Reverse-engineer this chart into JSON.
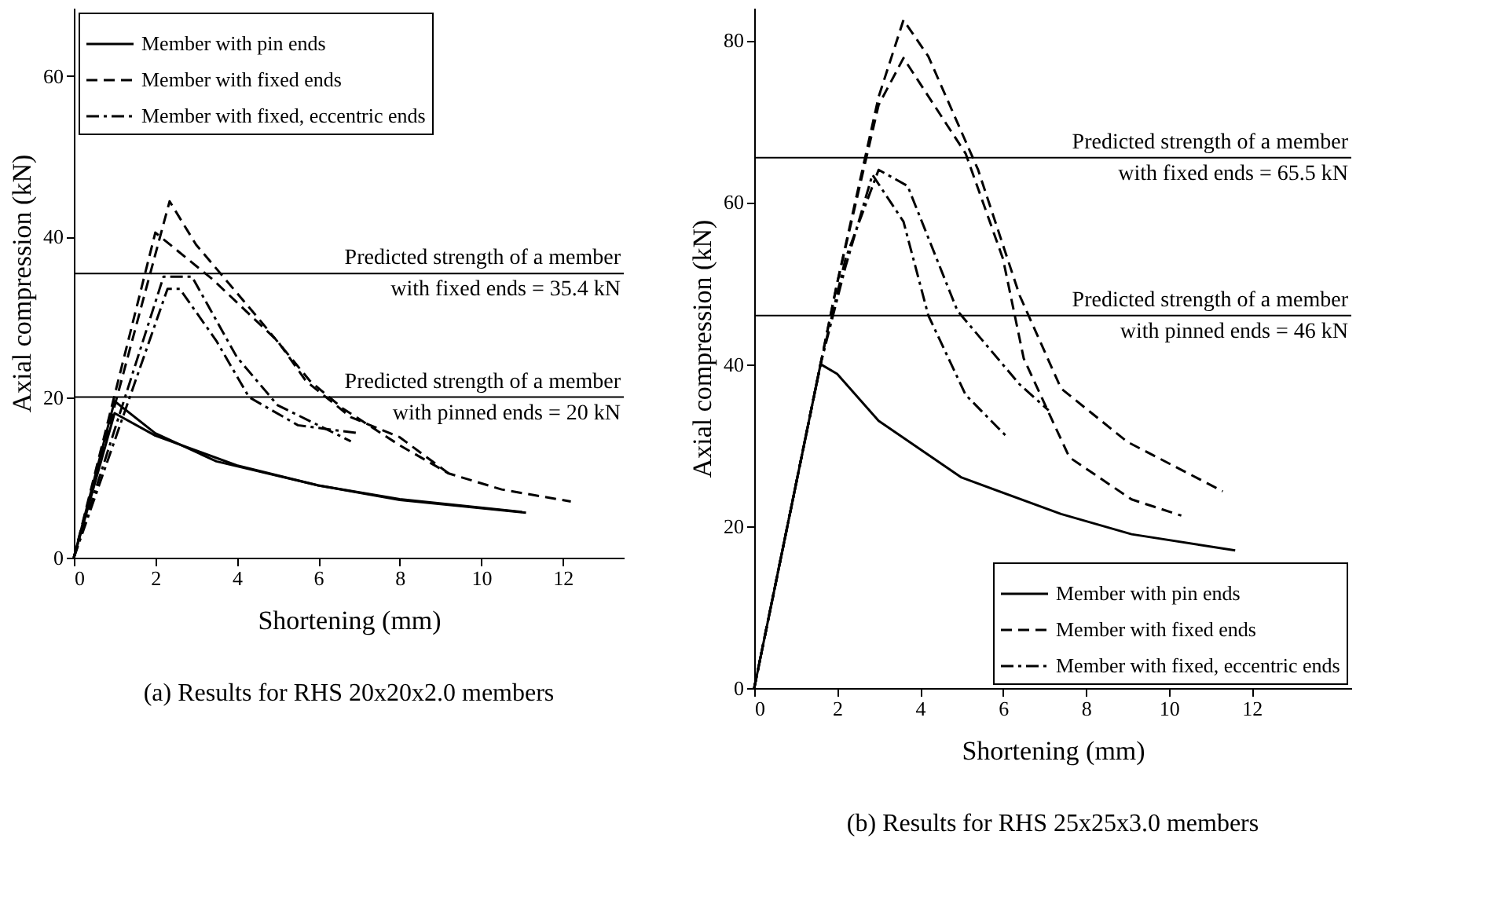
{
  "chart_data": [
    {
      "type": "line",
      "title": "(a) Results for RHS 20x20x2.0 members",
      "xlabel": "Shortening (mm)",
      "ylabel": "Axial compression (kN)",
      "xlim": [
        0,
        13.5
      ],
      "ylim": [
        0,
        68.5
      ],
      "xticks": [
        0,
        2,
        4,
        6,
        8,
        10,
        12
      ],
      "yticks": [
        0,
        20,
        40,
        60
      ],
      "legend": "top left",
      "ref_lines": [
        {
          "axis": "y",
          "value": 35.4,
          "label": "Predicted strength of a member\nwith fixed ends = 35.4 kN"
        },
        {
          "axis": "y",
          "value": 20,
          "label": "Predicted strength of a member\nwith pinned ends = 20 kN"
        }
      ],
      "series": [
        {
          "name": "Member with pin ends",
          "color": "#000000",
          "line_style": "solid",
          "x": [
            0,
            1,
            2,
            3.5,
            6,
            8,
            11
          ],
          "values": [
            0,
            19.5,
            15.5,
            12,
            9,
            7.3,
            5.7
          ]
        },
        {
          "color": "#000000",
          "line_style": "solid",
          "x": [
            0,
            1,
            2,
            4,
            6,
            8,
            11.1
          ],
          "values": [
            0,
            18,
            15.2,
            11.5,
            9,
            7.2,
            5.6
          ]
        },
        {
          "name": "Member with fixed ends",
          "color": "#000000",
          "line_style": "dashed",
          "x": [
            0,
            2.35,
            3,
            4.5,
            5.8,
            6.6,
            8,
            9.2,
            10.5,
            12.2
          ],
          "values": [
            0,
            44.4,
            39,
            30,
            22,
            18.6,
            14,
            10.5,
            8.5,
            7
          ]
        },
        {
          "color": "#000000",
          "line_style": "dashed",
          "x": [
            0,
            2,
            3.4,
            5,
            5.7,
            6.8,
            8,
            9.2
          ],
          "values": [
            0,
            40.5,
            34.7,
            27,
            22,
            17.5,
            15,
            10.5
          ]
        },
        {
          "name": "Member with fixed, eccentric ends",
          "color": "#000000",
          "line_style": "dashdot",
          "x": [
            0,
            2.2,
            2.9,
            4,
            5,
            6.8
          ],
          "values": [
            0,
            35,
            35,
            25,
            19,
            14.5
          ]
        },
        {
          "color": "#000000",
          "line_style": "dashdot",
          "x": [
            0,
            2.3,
            2.6,
            3.5,
            4.3,
            5.5,
            7
          ],
          "values": [
            0,
            33.5,
            33.5,
            27,
            20,
            16.5,
            15.5
          ]
        }
      ]
    },
    {
      "type": "line",
      "title": "(b) Results for RHS 25x25x3.0 members",
      "xlabel": "Shortening (mm)",
      "ylabel": "Axial compression (kN)",
      "xlim": [
        0,
        14.4
      ],
      "ylim": [
        0,
        84
      ],
      "xticks": [
        0,
        2,
        4,
        6,
        8,
        10,
        12
      ],
      "yticks": [
        0,
        20,
        40,
        60,
        80
      ],
      "legend": "bottom right",
      "ref_lines": [
        {
          "axis": "y",
          "value": 65.5,
          "label": "Predicted strength of a member\nwith fixed ends = 65.5 kN"
        },
        {
          "axis": "y",
          "value": 46,
          "label": "Predicted strength of a member\nwith pinned ends = 46 kN"
        }
      ],
      "series": [
        {
          "name": "Member with pin ends",
          "color": "#000000",
          "line_style": "solid",
          "x": [
            0,
            1.6,
            2,
            3,
            5,
            7.4,
            9.1,
            11.6
          ],
          "values": [
            0,
            40,
            38.8,
            33,
            26,
            21.5,
            19,
            17
          ]
        },
        {
          "name": "Member with fixed ends",
          "color": "#000000",
          "line_style": "dashed",
          "x": [
            0,
            1.6,
            2,
            3,
            3.6,
            4.2,
            5.4,
            6.4,
            7.4,
            9,
            11.3
          ],
          "values": [
            0,
            40,
            50,
            73,
            82.5,
            78,
            64,
            48.5,
            37,
            30.4,
            24.3
          ]
        },
        {
          "color": "#000000",
          "line_style": "dashed",
          "x": [
            0,
            1.6,
            2,
            3,
            3.6,
            5.1,
            6,
            6.5,
            7.6,
            9.1,
            10.3
          ],
          "values": [
            0,
            40,
            50,
            72,
            77.8,
            66,
            53,
            40.7,
            28.5,
            23.3,
            21.3
          ]
        },
        {
          "name": "Member with fixed, eccentric ends",
          "color": "#000000",
          "line_style": "dashdot",
          "x": [
            0,
            1.6,
            2.2,
            3,
            3.7,
            4.9,
            6.4,
            7.1
          ],
          "values": [
            0,
            40,
            53,
            64,
            62,
            46.6,
            37.5,
            34.3
          ]
        },
        {
          "color": "#000000",
          "line_style": "dashdot",
          "x": [
            0,
            1.6,
            2.2,
            2.85,
            3.6,
            4.2,
            5.1,
            6.1
          ],
          "values": [
            0,
            40,
            52,
            63.4,
            57.6,
            46,
            36.2,
            31
          ]
        }
      ]
    }
  ]
}
